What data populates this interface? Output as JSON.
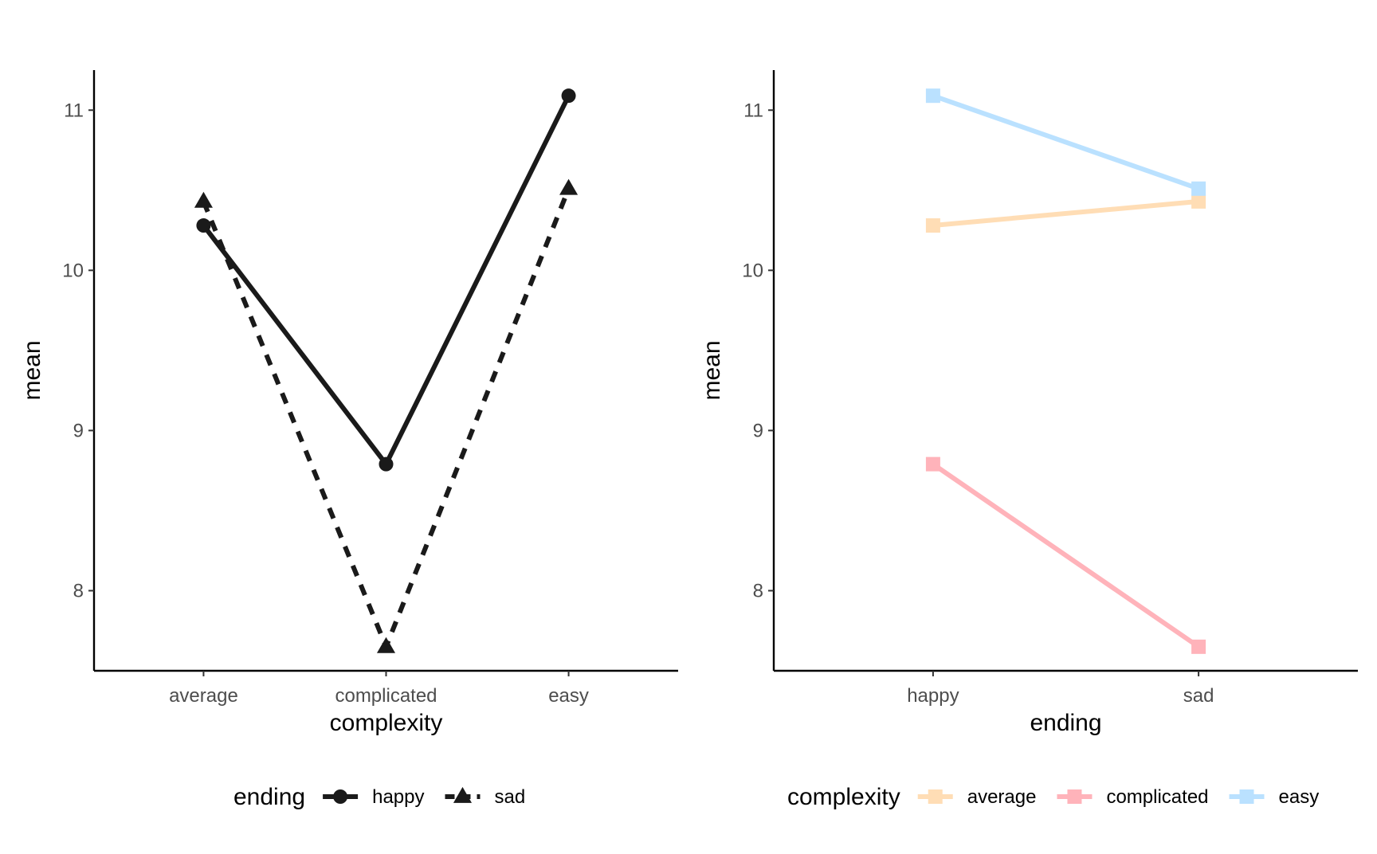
{
  "chart_data": [
    {
      "type": "line",
      "xlabel": "complexity",
      "ylabel": "mean",
      "categories": [
        "average",
        "complicated",
        "easy"
      ],
      "yticks": [
        8,
        9,
        10,
        11
      ],
      "ylim": [
        7.5,
        11.25
      ],
      "grid": false,
      "legend": {
        "title": "ending",
        "placement": "bottom",
        "entries": [
          {
            "label": "happy",
            "marker": "circle",
            "line": "solid",
            "color": "#1a1a1a"
          },
          {
            "label": "sad",
            "marker": "triangle",
            "line": "dashed",
            "color": "#1a1a1a"
          }
        ]
      },
      "series": [
        {
          "name": "happy",
          "values": [
            10.28,
            8.79,
            11.09
          ],
          "marker": "circle",
          "line": "solid",
          "color": "#1a1a1a"
        },
        {
          "name": "sad",
          "values": [
            10.43,
            7.65,
            10.51
          ],
          "marker": "triangle",
          "line": "dashed",
          "color": "#1a1a1a"
        }
      ]
    },
    {
      "type": "line",
      "xlabel": "ending",
      "ylabel": "mean",
      "categories": [
        "happy",
        "sad"
      ],
      "yticks": [
        8,
        9,
        10,
        11
      ],
      "ylim": [
        7.5,
        11.25
      ],
      "grid": false,
      "legend": {
        "title": "complexity",
        "placement": "bottom",
        "entries": [
          {
            "label": "average",
            "marker": "square",
            "line": "solid",
            "color": "#FFDDB5"
          },
          {
            "label": "complicated",
            "marker": "square",
            "line": "solid",
            "color": "#FFB3BA"
          },
          {
            "label": "easy",
            "marker": "square",
            "line": "solid",
            "color": "#BAE1FF"
          }
        ]
      },
      "series": [
        {
          "name": "average",
          "values": [
            10.28,
            10.43
          ],
          "marker": "square",
          "line": "solid",
          "color": "#FFDDB5"
        },
        {
          "name": "complicated",
          "values": [
            8.79,
            7.65
          ],
          "marker": "square",
          "line": "solid",
          "color": "#FFB3BA"
        },
        {
          "name": "easy",
          "values": [
            11.09,
            10.51
          ],
          "marker": "square",
          "line": "solid",
          "color": "#BAE1FF"
        }
      ]
    }
  ]
}
